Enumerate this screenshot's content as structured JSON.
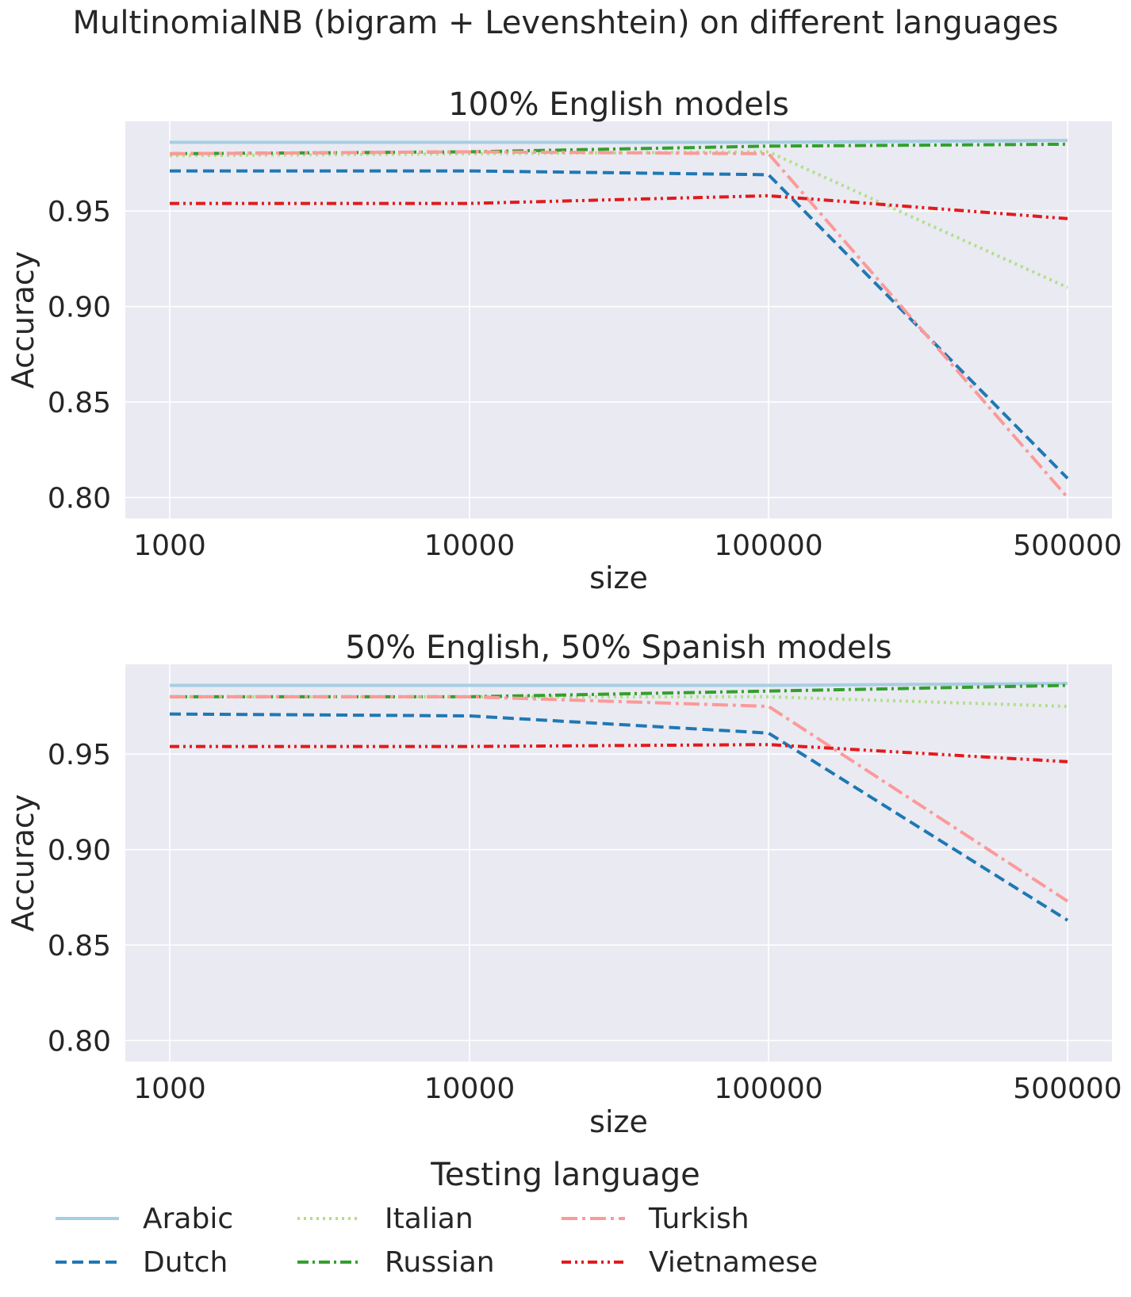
{
  "figure": {
    "title": "MultinomialNB (bigram + Levenshtein) on different languages"
  },
  "legend": {
    "title": "Testing language",
    "placement": "bottom-center"
  },
  "series_styles": [
    {
      "name": "Arabic",
      "color": "#a6cee3",
      "dash": "solid"
    },
    {
      "name": "Dutch",
      "color": "#1f78b4",
      "dash": "dashed"
    },
    {
      "name": "Italian",
      "color": "#b2df8a",
      "dash": "dotted"
    },
    {
      "name": "Russian",
      "color": "#33a02c",
      "dash": "dashdot"
    },
    {
      "name": "Turkish",
      "color": "#fb9a99",
      "dash": "dashdot-long"
    },
    {
      "name": "Vietnamese",
      "color": "#e31a1c",
      "dash": "dashdotdot"
    }
  ],
  "chart_data": [
    {
      "type": "line",
      "title": "100% English models",
      "xlabel": "size",
      "ylabel": "Accuracy",
      "categories": [
        "1000",
        "10000",
        "100000",
        "500000"
      ],
      "ylim": [
        0.789,
        0.997
      ],
      "yticks": [
        "0.80",
        "0.85",
        "0.90",
        "0.95"
      ],
      "ytick_values": [
        0.8,
        0.85,
        0.9,
        0.95
      ],
      "grid": true,
      "series": [
        {
          "name": "Arabic",
          "values": [
            0.986,
            0.986,
            0.986,
            0.987
          ]
        },
        {
          "name": "Dutch",
          "values": [
            0.971,
            0.971,
            0.969,
            0.81
          ]
        },
        {
          "name": "Italian",
          "values": [
            0.979,
            0.98,
            0.981,
            0.91
          ]
        },
        {
          "name": "Russian",
          "values": [
            0.98,
            0.981,
            0.984,
            0.985
          ]
        },
        {
          "name": "Turkish",
          "values": [
            0.98,
            0.981,
            0.98,
            0.8
          ]
        },
        {
          "name": "Vietnamese",
          "values": [
            0.954,
            0.954,
            0.958,
            0.946
          ]
        }
      ]
    },
    {
      "type": "line",
      "title": "50% English, 50% Spanish models",
      "xlabel": "size",
      "ylabel": "Accuracy",
      "categories": [
        "1000",
        "10000",
        "100000",
        "500000"
      ],
      "ylim": [
        0.789,
        0.997
      ],
      "yticks": [
        "0.80",
        "0.85",
        "0.90",
        "0.95"
      ],
      "ytick_values": [
        0.8,
        0.85,
        0.9,
        0.95
      ],
      "grid": true,
      "series": [
        {
          "name": "Arabic",
          "values": [
            0.986,
            0.986,
            0.986,
            0.987
          ]
        },
        {
          "name": "Dutch",
          "values": [
            0.971,
            0.97,
            0.961,
            0.863
          ]
        },
        {
          "name": "Italian",
          "values": [
            0.98,
            0.98,
            0.98,
            0.975
          ]
        },
        {
          "name": "Russian",
          "values": [
            0.98,
            0.98,
            0.983,
            0.986
          ]
        },
        {
          "name": "Turkish",
          "values": [
            0.98,
            0.98,
            0.975,
            0.873
          ]
        },
        {
          "name": "Vietnamese",
          "values": [
            0.954,
            0.954,
            0.955,
            0.946
          ]
        }
      ]
    }
  ]
}
